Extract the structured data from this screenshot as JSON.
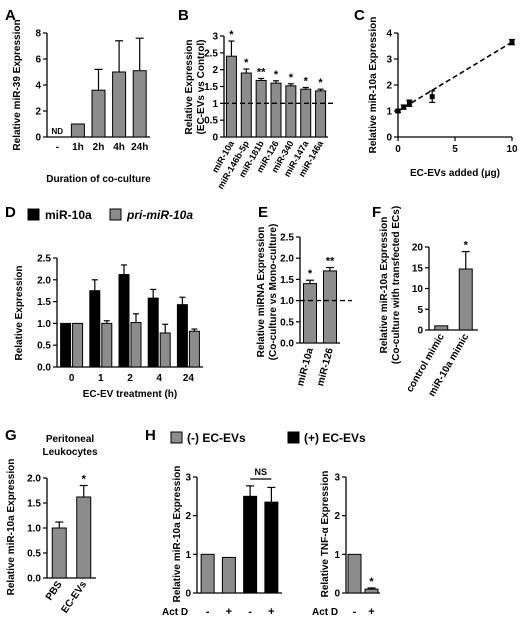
{
  "colors": {
    "gray": "#8c8c8c",
    "black": "#000000",
    "axis": "#000000"
  },
  "chart_data": [
    {
      "panel": "A",
      "type": "bar",
      "categories": [
        "-",
        "1h",
        "2h",
        "4h",
        "24h"
      ],
      "values": [
        0,
        1.0,
        3.6,
        5.0,
        5.1
      ],
      "errors": [
        0,
        0,
        1.6,
        2.4,
        2.5
      ],
      "bar_labels": [
        "ND",
        "",
        "",
        "",
        ""
      ],
      "xlabel": "Duration of co-culture",
      "ylabel": "Relative miR-39 Expression",
      "ylim": [
        0,
        8
      ],
      "yticks": [
        0,
        2,
        4,
        6,
        8
      ],
      "color": "gray"
    },
    {
      "panel": "B",
      "type": "bar",
      "categories": [
        "miR-10a",
        "miR-146b-5p",
        "miR-181b",
        "miR-126",
        "miR-340",
        "miR-147a",
        "miR-146a"
      ],
      "values": [
        2.4,
        1.9,
        1.68,
        1.6,
        1.52,
        1.42,
        1.37
      ],
      "errors": [
        0.45,
        0.12,
        0.06,
        0.07,
        0.06,
        0.05,
        0.05
      ],
      "sig": [
        "*",
        "*",
        "**",
        "*",
        "*",
        "*",
        "*"
      ],
      "xlabel": "",
      "ylabel": "Relative Expression (EC-EVs vs Control)",
      "ylim": [
        0,
        3
      ],
      "yticks": [
        0,
        0.5,
        1,
        1.5,
        2,
        2.5,
        3
      ],
      "refline": 1,
      "color": "gray"
    },
    {
      "panel": "C",
      "type": "scatter",
      "x": [
        0,
        0.5,
        1,
        3,
        10
      ],
      "y": [
        1.0,
        1.15,
        1.3,
        1.55,
        3.65
      ],
      "errors": [
        0.05,
        0.08,
        0.12,
        0.22,
        0.1
      ],
      "xlabel": "EC-EVs added (μg)",
      "ylabel": "Relative miR-10a Expression",
      "xlim": [
        0,
        10
      ],
      "xticks": [
        0,
        5,
        10
      ],
      "ylim": [
        0,
        4
      ],
      "yticks": [
        0,
        1,
        2,
        3,
        4
      ],
      "fit": "dashed-linear"
    },
    {
      "panel": "D",
      "type": "bar",
      "categories": [
        "0",
        "1",
        "2",
        "4",
        "24"
      ],
      "series": [
        {
          "name": "miR-10a",
          "values": [
            1.0,
            1.75,
            2.12,
            1.58,
            1.43
          ],
          "errors": [
            0,
            0.25,
            0.22,
            0.2,
            0.17
          ],
          "color": "black"
        },
        {
          "name": "pri-miR-10a",
          "values": [
            1.0,
            1.0,
            1.02,
            0.78,
            0.82
          ],
          "errors": [
            0,
            0.06,
            0.2,
            0.2,
            0.05
          ],
          "color": "gray"
        }
      ],
      "xlabel": "EC-EV treatment (h)",
      "ylabel": "Relative Expression",
      "ylim": [
        0,
        2.5
      ],
      "yticks": [
        0,
        0.5,
        1,
        1.5,
        2,
        2.5
      ],
      "legend": "top"
    },
    {
      "panel": "E",
      "type": "bar",
      "categories": [
        "miR-10a",
        "miR-126"
      ],
      "values": [
        1.4,
        1.7
      ],
      "errors": [
        0.08,
        0.08
      ],
      "sig": [
        "*",
        "**"
      ],
      "xlabel": "",
      "ylabel": "Relative miRNA Expression (Co-culture vs Mono-culture)",
      "ylim": [
        0,
        2.5
      ],
      "yticks": [
        0,
        0.5,
        1,
        1.5,
        2,
        2.5
      ],
      "refline": 1,
      "color": "gray"
    },
    {
      "panel": "F",
      "type": "bar",
      "categories": [
        "control mimic",
        "miR-10a mimic"
      ],
      "values": [
        1.0,
        14.7
      ],
      "errors": [
        0,
        4.2
      ],
      "sig": [
        "",
        "*"
      ],
      "xlabel": "",
      "ylabel": "Relative miR-10a Expression (Co-culture with transfected ECs)",
      "ylim": [
        0,
        20
      ],
      "yticks": [
        0,
        5,
        10,
        15,
        20
      ],
      "color": "gray"
    },
    {
      "panel": "G",
      "type": "bar",
      "title": "Peritoneal Leukocytes",
      "categories": [
        "PBS",
        "EC-EVs"
      ],
      "values": [
        1.0,
        1.62
      ],
      "errors": [
        0.12,
        0.23
      ],
      "sig": [
        "",
        "*"
      ],
      "xlabel": "",
      "ylabel": "Relative miR-10a Expression",
      "ylim": [
        0,
        2
      ],
      "yticks": [
        0,
        0.5,
        1,
        1.5,
        2
      ],
      "color": "gray"
    },
    {
      "panel": "H",
      "type": "bar",
      "legend_entries": [
        "(-) EC-EVs",
        "(+) EC-EVs"
      ],
      "treatment_label": "Act D",
      "categories": [
        "-",
        "+",
        "-",
        "+"
      ],
      "values": [
        1.0,
        0.92,
        2.5,
        2.35
      ],
      "errors": [
        0,
        0,
        0.27,
        0.38
      ],
      "series_index": [
        0,
        0,
        1,
        1
      ],
      "annotation": "NS",
      "xlabel": "",
      "ylabel": "Relative miR-10a Expression",
      "ylim": [
        0,
        3
      ],
      "yticks": [
        0,
        1,
        2,
        3
      ]
    },
    {
      "panel": "H2",
      "type": "bar",
      "treatment_label": "Act D",
      "categories": [
        "-",
        "+"
      ],
      "values": [
        1.0,
        0.1
      ],
      "errors": [
        0,
        0.03
      ],
      "sig": [
        "",
        "*"
      ],
      "xlabel": "",
      "ylabel": "Relative TNF-α Expression",
      "ylim": [
        0,
        3
      ],
      "yticks": [
        0,
        1,
        2,
        3
      ],
      "color": "gray"
    }
  ]
}
